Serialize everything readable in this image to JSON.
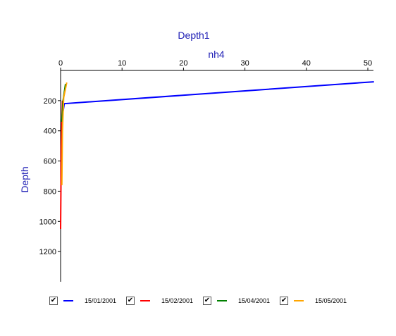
{
  "chart_data": {
    "type": "line",
    "title": "Depth1",
    "xlabel": "nh4",
    "ylabel": "Depth",
    "x_axis_position": "top",
    "y_axis_inverted": true,
    "xlim": [
      0,
      50
    ],
    "ylim": [
      0,
      1400
    ],
    "x_ticks": [
      0,
      10,
      20,
      30,
      40,
      50
    ],
    "y_ticks": [
      200,
      400,
      600,
      800,
      1000,
      1200
    ],
    "grid": false,
    "legend_position": "bottom",
    "series": [
      {
        "name": "15/01/2001",
        "color": "#0000ff",
        "checked": true,
        "points": [
          [
            51,
            75
          ],
          [
            0.6,
            220
          ],
          [
            0.3,
            300
          ],
          [
            0.2,
            450
          ]
        ]
      },
      {
        "name": "15/02/2001",
        "color": "#ff0000",
        "checked": true,
        "points": [
          [
            0.3,
            200
          ],
          [
            0.1,
            500
          ],
          [
            0.05,
            800
          ],
          [
            0.0,
            1050
          ]
        ]
      },
      {
        "name": "15/04/2001",
        "color": "#008000",
        "checked": true,
        "points": [
          [
            0.8,
            90
          ],
          [
            0.4,
            200
          ],
          [
            0.2,
            340
          ]
        ]
      },
      {
        "name": "15/05/2001",
        "color": "#ffa500",
        "checked": true,
        "points": [
          [
            1.0,
            80
          ],
          [
            0.5,
            180
          ],
          [
            0.3,
            400
          ],
          [
            0.2,
            760
          ]
        ]
      }
    ]
  }
}
